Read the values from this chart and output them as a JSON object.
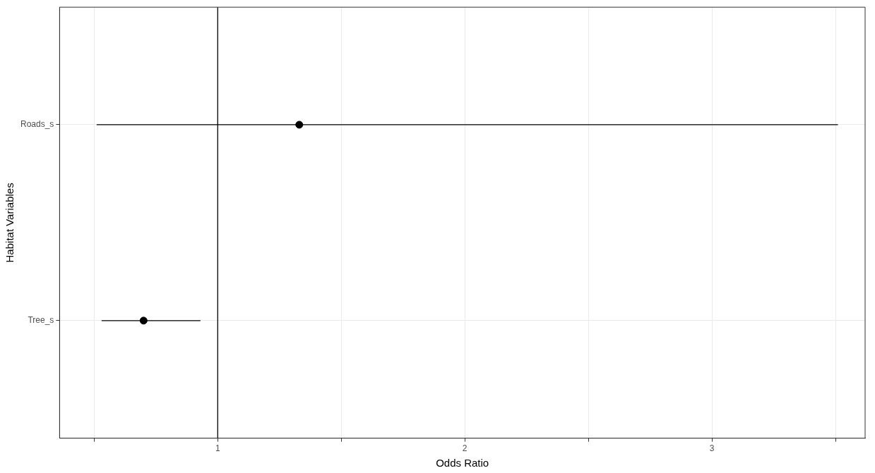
{
  "chart_data": {
    "type": "scatter",
    "orientation": "horizontal",
    "xlabel": "Odds Ratio",
    "ylabel": "Habitat Variables",
    "categories": [
      "Roads_s",
      "Tree_s"
    ],
    "series": [
      {
        "color": "#000000",
        "values": [
          1.33,
          0.7
        ],
        "errors": [
          [
            0.51,
            3.51
          ],
          [
            0.53,
            0.93
          ]
        ]
      }
    ],
    "xlim": [
      0.36,
      3.62
    ],
    "xticks": [
      {
        "value": 0.5,
        "label": null
      },
      1,
      {
        "value": 1.5,
        "label": null
      },
      2,
      {
        "value": 2.5,
        "label": null
      },
      3,
      {
        "value": 3.5,
        "label": null
      }
    ],
    "ref_lines": [
      {
        "axis": "x",
        "value": 1,
        "color": "#000000"
      }
    ],
    "grid": true,
    "marker": "circle",
    "legend": false
  }
}
